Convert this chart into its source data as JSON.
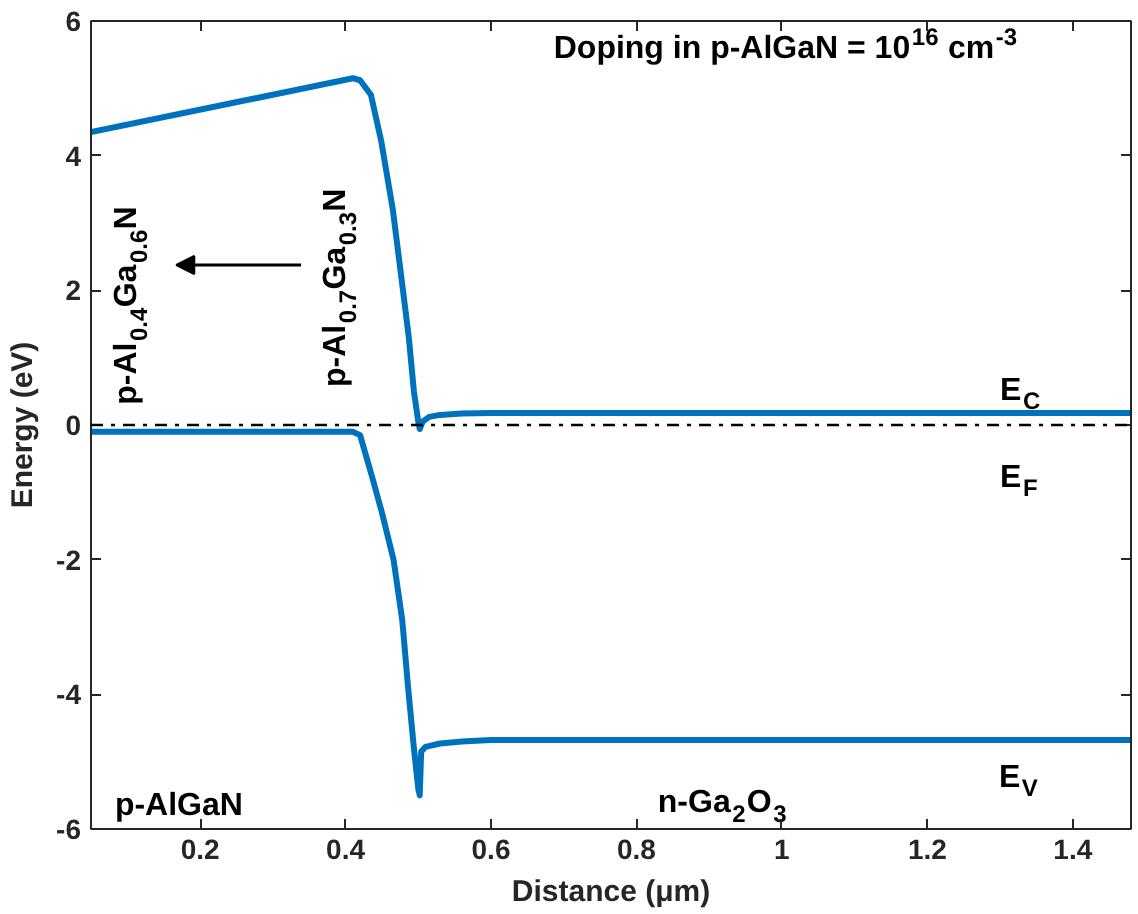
{
  "chart_data": {
    "type": "line",
    "title": "Doping in p-AlGaN = 10$^{16}$ cm$^{-3}$",
    "xlabel": "Distance (μm)",
    "ylabel": "Energy (eV)",
    "series": [
      {
        "color": "#0072bd",
        "x": [
          0.05,
          0.41,
          0.42,
          0.435,
          0.449,
          0.465,
          0.477,
          0.487,
          0.494,
          0.5,
          0.502,
          0.506,
          0.515,
          0.53,
          0.56,
          0.6,
          0.8,
          1.0,
          1.48
        ],
        "values": [
          4.35,
          5.15,
          5.12,
          4.9,
          4.22,
          3.2,
          2.17,
          1.3,
          0.5,
          0.05,
          -0.06,
          0.05,
          0.12,
          0.15,
          0.17,
          0.18,
          0.18,
          0.18,
          0.18
        ]
      },
      {
        "color": "#0072bd",
        "x": [
          0.05,
          0.41,
          0.42,
          0.436,
          0.45,
          0.466,
          0.478,
          0.486,
          0.494,
          0.5,
          0.502,
          0.504,
          0.51,
          0.53,
          0.56,
          0.6,
          0.8,
          1.48
        ],
        "values": [
          -0.1,
          -0.1,
          -0.15,
          -0.75,
          -1.3,
          -2.0,
          -2.9,
          -3.9,
          -4.8,
          -5.4,
          -5.5,
          -4.85,
          -4.78,
          -4.73,
          -4.7,
          -4.68,
          -4.68,
          -4.68
        ]
      }
    ],
    "ref_lines": [
      {
        "axis": "y",
        "value": 0,
        "color": "#000000",
        "line_style": "dashdot"
      }
    ],
    "annotations": [
      "p-Al$_{0.4}$Ga$_{0.6}$N",
      "p-Al$_{0.7}$Ga$_{0.3}$N",
      "E$_{C}$",
      "E$_{F}$",
      "E$_{V}$",
      "p-AlGaN",
      "n-Ga$_{2}$O$_{3}$"
    ],
    "xlim": [
      0.05,
      1.48
    ],
    "ylim": [
      -6,
      6
    ],
    "xticks": [
      0.2,
      0.4,
      0.6,
      0.8,
      1,
      1.2,
      1.4
    ],
    "yticks": [
      -6,
      -4,
      -2,
      0,
      2,
      4,
      6
    ],
    "grid": false,
    "marker": "none",
    "line_style": "solid"
  }
}
